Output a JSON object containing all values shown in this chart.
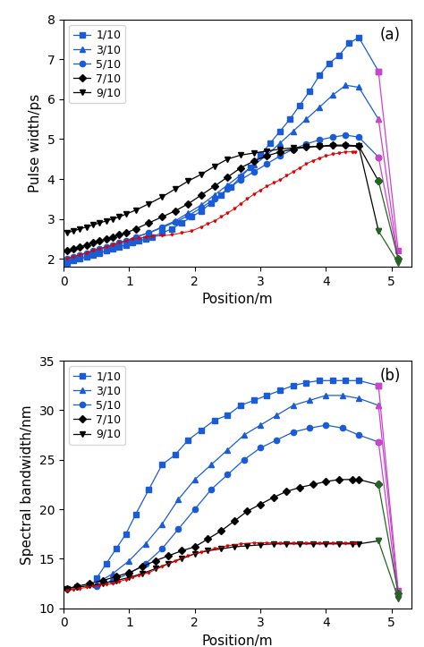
{
  "title_a": "(a)",
  "title_b": "(b)",
  "xlabel": "Position/m",
  "ylabel_a": "Pulse width/ps",
  "ylabel_b": "Spectral bandwidth/nm",
  "legend_labels": [
    "1/10",
    "3/10",
    "5/10",
    "7/10",
    "9/10"
  ],
  "xlim": [
    0,
    5.3
  ],
  "ylim_a": [
    1.8,
    8.0
  ],
  "ylim_b": [
    10,
    35
  ],
  "yticks_a": [
    2,
    3,
    4,
    5,
    6,
    7,
    8
  ],
  "yticks_b": [
    10,
    15,
    20,
    25,
    30,
    35
  ],
  "xticks": [
    0,
    1,
    2,
    3,
    4,
    5
  ],
  "blue": "#1a5cd8",
  "black": "#000000",
  "magenta": "#cc44cc",
  "green": "#226622",
  "red": "#dd0000",
  "split_x": 4.62,
  "a_1_10_x": [
    0.05,
    0.15,
    0.25,
    0.35,
    0.45,
    0.55,
    0.65,
    0.75,
    0.85,
    0.95,
    1.05,
    1.15,
    1.25,
    1.35,
    1.5,
    1.65,
    1.8,
    1.95,
    2.1,
    2.25,
    2.4,
    2.55,
    2.7,
    2.85,
    3.0,
    3.15,
    3.3,
    3.45,
    3.6,
    3.75,
    3.9,
    4.05,
    4.2,
    4.35,
    4.5,
    4.8,
    5.1
  ],
  "a_1_10_y": [
    1.9,
    1.95,
    2.0,
    2.05,
    2.1,
    2.15,
    2.2,
    2.25,
    2.3,
    2.35,
    2.4,
    2.45,
    2.5,
    2.55,
    2.65,
    2.75,
    2.9,
    3.05,
    3.2,
    3.4,
    3.6,
    3.8,
    4.05,
    4.3,
    4.6,
    4.9,
    5.2,
    5.5,
    5.85,
    6.2,
    6.6,
    6.9,
    7.1,
    7.4,
    7.55,
    6.7,
    2.2
  ],
  "a_3_10_x": [
    0.05,
    0.15,
    0.25,
    0.35,
    0.45,
    0.55,
    0.65,
    0.75,
    0.85,
    0.95,
    1.1,
    1.3,
    1.5,
    1.7,
    1.9,
    2.1,
    2.3,
    2.5,
    2.7,
    2.9,
    3.1,
    3.3,
    3.5,
    3.7,
    3.9,
    4.1,
    4.3,
    4.5,
    4.8,
    5.1
  ],
  "a_3_10_y": [
    2.0,
    2.05,
    2.1,
    2.15,
    2.2,
    2.25,
    2.3,
    2.35,
    2.4,
    2.45,
    2.55,
    2.65,
    2.8,
    2.95,
    3.15,
    3.35,
    3.6,
    3.85,
    4.1,
    4.35,
    4.6,
    4.9,
    5.2,
    5.5,
    5.8,
    6.1,
    6.35,
    6.3,
    5.5,
    2.0
  ],
  "a_5_10_x": [
    0.05,
    0.15,
    0.25,
    0.35,
    0.45,
    0.55,
    0.65,
    0.75,
    0.85,
    0.95,
    1.1,
    1.3,
    1.5,
    1.7,
    1.9,
    2.1,
    2.3,
    2.5,
    2.7,
    2.9,
    3.1,
    3.3,
    3.5,
    3.7,
    3.9,
    4.1,
    4.3,
    4.5,
    4.8,
    5.1
  ],
  "a_5_10_y": [
    2.0,
    2.05,
    2.1,
    2.15,
    2.2,
    2.25,
    2.3,
    2.35,
    2.4,
    2.45,
    2.55,
    2.65,
    2.78,
    2.92,
    3.08,
    3.28,
    3.5,
    3.75,
    3.98,
    4.18,
    4.38,
    4.58,
    4.75,
    4.88,
    4.98,
    5.05,
    5.1,
    5.05,
    4.55,
    2.0
  ],
  "a_7_10_x": [
    0.05,
    0.15,
    0.25,
    0.35,
    0.45,
    0.55,
    0.65,
    0.75,
    0.85,
    0.95,
    1.1,
    1.3,
    1.5,
    1.7,
    1.9,
    2.1,
    2.3,
    2.5,
    2.7,
    2.9,
    3.1,
    3.3,
    3.5,
    3.7,
    3.9,
    4.1,
    4.3,
    4.5,
    4.8,
    5.1
  ],
  "a_7_10_y": [
    2.2,
    2.25,
    2.3,
    2.35,
    2.4,
    2.45,
    2.5,
    2.55,
    2.6,
    2.65,
    2.75,
    2.9,
    3.05,
    3.2,
    3.38,
    3.6,
    3.82,
    4.05,
    4.28,
    4.45,
    4.58,
    4.68,
    4.75,
    4.8,
    4.82,
    4.85,
    4.85,
    4.83,
    3.95,
    2.0
  ],
  "a_9_10_x": [
    0.05,
    0.15,
    0.25,
    0.35,
    0.45,
    0.55,
    0.65,
    0.75,
    0.85,
    0.95,
    1.1,
    1.3,
    1.5,
    1.7,
    1.9,
    2.1,
    2.3,
    2.5,
    2.7,
    2.9,
    3.1,
    3.3,
    3.5,
    3.7,
    3.9,
    4.1,
    4.3,
    4.5,
    4.8,
    5.1
  ],
  "a_9_10_y": [
    2.65,
    2.7,
    2.75,
    2.8,
    2.85,
    2.9,
    2.95,
    3.0,
    3.05,
    3.12,
    3.22,
    3.38,
    3.55,
    3.75,
    3.95,
    4.12,
    4.32,
    4.5,
    4.6,
    4.65,
    4.7,
    4.75,
    4.78,
    4.8,
    4.82,
    4.83,
    4.83,
    4.82,
    2.7,
    1.9
  ],
  "b_1_10_x": [
    0.5,
    0.65,
    0.8,
    0.95,
    1.1,
    1.3,
    1.5,
    1.7,
    1.9,
    2.1,
    2.3,
    2.5,
    2.7,
    2.9,
    3.1,
    3.3,
    3.5,
    3.7,
    3.9,
    4.1,
    4.3,
    4.5,
    4.8,
    5.1
  ],
  "b_1_10_y": [
    13.0,
    14.5,
    16.0,
    17.5,
    19.5,
    22.0,
    24.5,
    25.5,
    27.0,
    28.0,
    29.0,
    29.5,
    30.5,
    31.0,
    31.5,
    32.0,
    32.5,
    32.8,
    33.0,
    33.0,
    33.0,
    33.0,
    32.5,
    11.8
  ],
  "b_3_10_x": [
    0.5,
    0.75,
    1.0,
    1.25,
    1.5,
    1.75,
    2.0,
    2.25,
    2.5,
    2.75,
    3.0,
    3.25,
    3.5,
    3.75,
    4.0,
    4.25,
    4.5,
    4.8,
    5.1
  ],
  "b_3_10_y": [
    12.5,
    13.5,
    14.8,
    16.5,
    18.5,
    21.0,
    23.0,
    24.5,
    26.0,
    27.5,
    28.5,
    29.5,
    30.5,
    31.0,
    31.5,
    31.5,
    31.2,
    30.5,
    11.5
  ],
  "b_5_10_x": [
    0.5,
    0.75,
    1.0,
    1.25,
    1.5,
    1.75,
    2.0,
    2.25,
    2.5,
    2.75,
    3.0,
    3.25,
    3.5,
    3.75,
    4.0,
    4.25,
    4.5,
    4.8,
    5.1
  ],
  "b_5_10_y": [
    12.2,
    12.8,
    13.5,
    14.5,
    16.0,
    18.0,
    20.0,
    22.0,
    23.5,
    25.0,
    26.2,
    27.0,
    27.8,
    28.2,
    28.5,
    28.2,
    27.5,
    26.8,
    11.2
  ],
  "b_7_10_x": [
    0.05,
    0.2,
    0.4,
    0.6,
    0.8,
    1.0,
    1.2,
    1.4,
    1.6,
    1.8,
    2.0,
    2.2,
    2.4,
    2.6,
    2.8,
    3.0,
    3.2,
    3.4,
    3.6,
    3.8,
    4.0,
    4.2,
    4.4,
    4.5,
    4.8,
    5.1
  ],
  "b_7_10_y": [
    12.0,
    12.2,
    12.5,
    12.8,
    13.2,
    13.6,
    14.2,
    14.8,
    15.3,
    15.8,
    16.2,
    17.0,
    17.8,
    18.8,
    19.8,
    20.5,
    21.2,
    21.8,
    22.2,
    22.5,
    22.8,
    23.0,
    23.0,
    23.0,
    22.5,
    11.5
  ],
  "b_9_10_x": [
    0.05,
    0.2,
    0.4,
    0.6,
    0.8,
    1.0,
    1.2,
    1.4,
    1.6,
    1.8,
    2.0,
    2.2,
    2.4,
    2.6,
    2.8,
    3.0,
    3.2,
    3.4,
    3.6,
    3.8,
    4.0,
    4.2,
    4.4,
    4.5,
    4.8,
    5.1
  ],
  "b_9_10_y": [
    12.0,
    12.1,
    12.3,
    12.5,
    12.8,
    13.1,
    13.5,
    14.0,
    14.5,
    15.0,
    15.5,
    15.8,
    16.0,
    16.2,
    16.3,
    16.4,
    16.5,
    16.5,
    16.5,
    16.5,
    16.5,
    16.5,
    16.5,
    16.5,
    16.8,
    11.0
  ],
  "red_a_x": [
    0.05,
    0.15,
    0.25,
    0.35,
    0.45,
    0.55,
    0.65,
    0.75,
    0.85,
    0.95,
    1.05,
    1.15,
    1.25,
    1.35,
    1.5,
    1.65,
    1.8,
    1.95,
    2.1,
    2.2,
    2.3,
    2.4,
    2.5,
    2.6,
    2.7,
    2.8,
    2.9,
    3.0,
    3.1,
    3.2,
    3.3,
    3.4,
    3.5,
    3.6,
    3.7,
    3.8,
    3.9,
    4.0,
    4.1,
    4.2,
    4.3,
    4.4,
    4.45
  ],
  "red_a_y": [
    2.0,
    2.05,
    2.1,
    2.15,
    2.2,
    2.25,
    2.3,
    2.35,
    2.4,
    2.45,
    2.5,
    2.52,
    2.54,
    2.56,
    2.58,
    2.6,
    2.65,
    2.7,
    2.8,
    2.88,
    2.95,
    3.05,
    3.15,
    3.25,
    3.38,
    3.5,
    3.62,
    3.72,
    3.82,
    3.9,
    3.98,
    4.08,
    4.18,
    4.28,
    4.38,
    4.46,
    4.52,
    4.58,
    4.62,
    4.65,
    4.68,
    4.68,
    4.67
  ],
  "red_b_x": [
    0.05,
    0.15,
    0.25,
    0.35,
    0.45,
    0.55,
    0.65,
    0.75,
    0.85,
    0.95,
    1.05,
    1.15,
    1.3,
    1.5,
    1.7,
    1.9,
    2.1,
    2.3,
    2.5,
    2.7,
    2.9,
    3.1,
    3.3,
    3.5,
    3.7,
    3.9,
    4.1,
    4.3,
    4.45
  ],
  "red_b_y": [
    11.8,
    11.9,
    12.0,
    12.1,
    12.2,
    12.3,
    12.4,
    12.5,
    12.7,
    12.9,
    13.1,
    13.3,
    13.6,
    14.2,
    14.8,
    15.3,
    15.7,
    16.0,
    16.3,
    16.5,
    16.6,
    16.6,
    16.6,
    16.6,
    16.6,
    16.6,
    16.6,
    16.6,
    16.6
  ]
}
